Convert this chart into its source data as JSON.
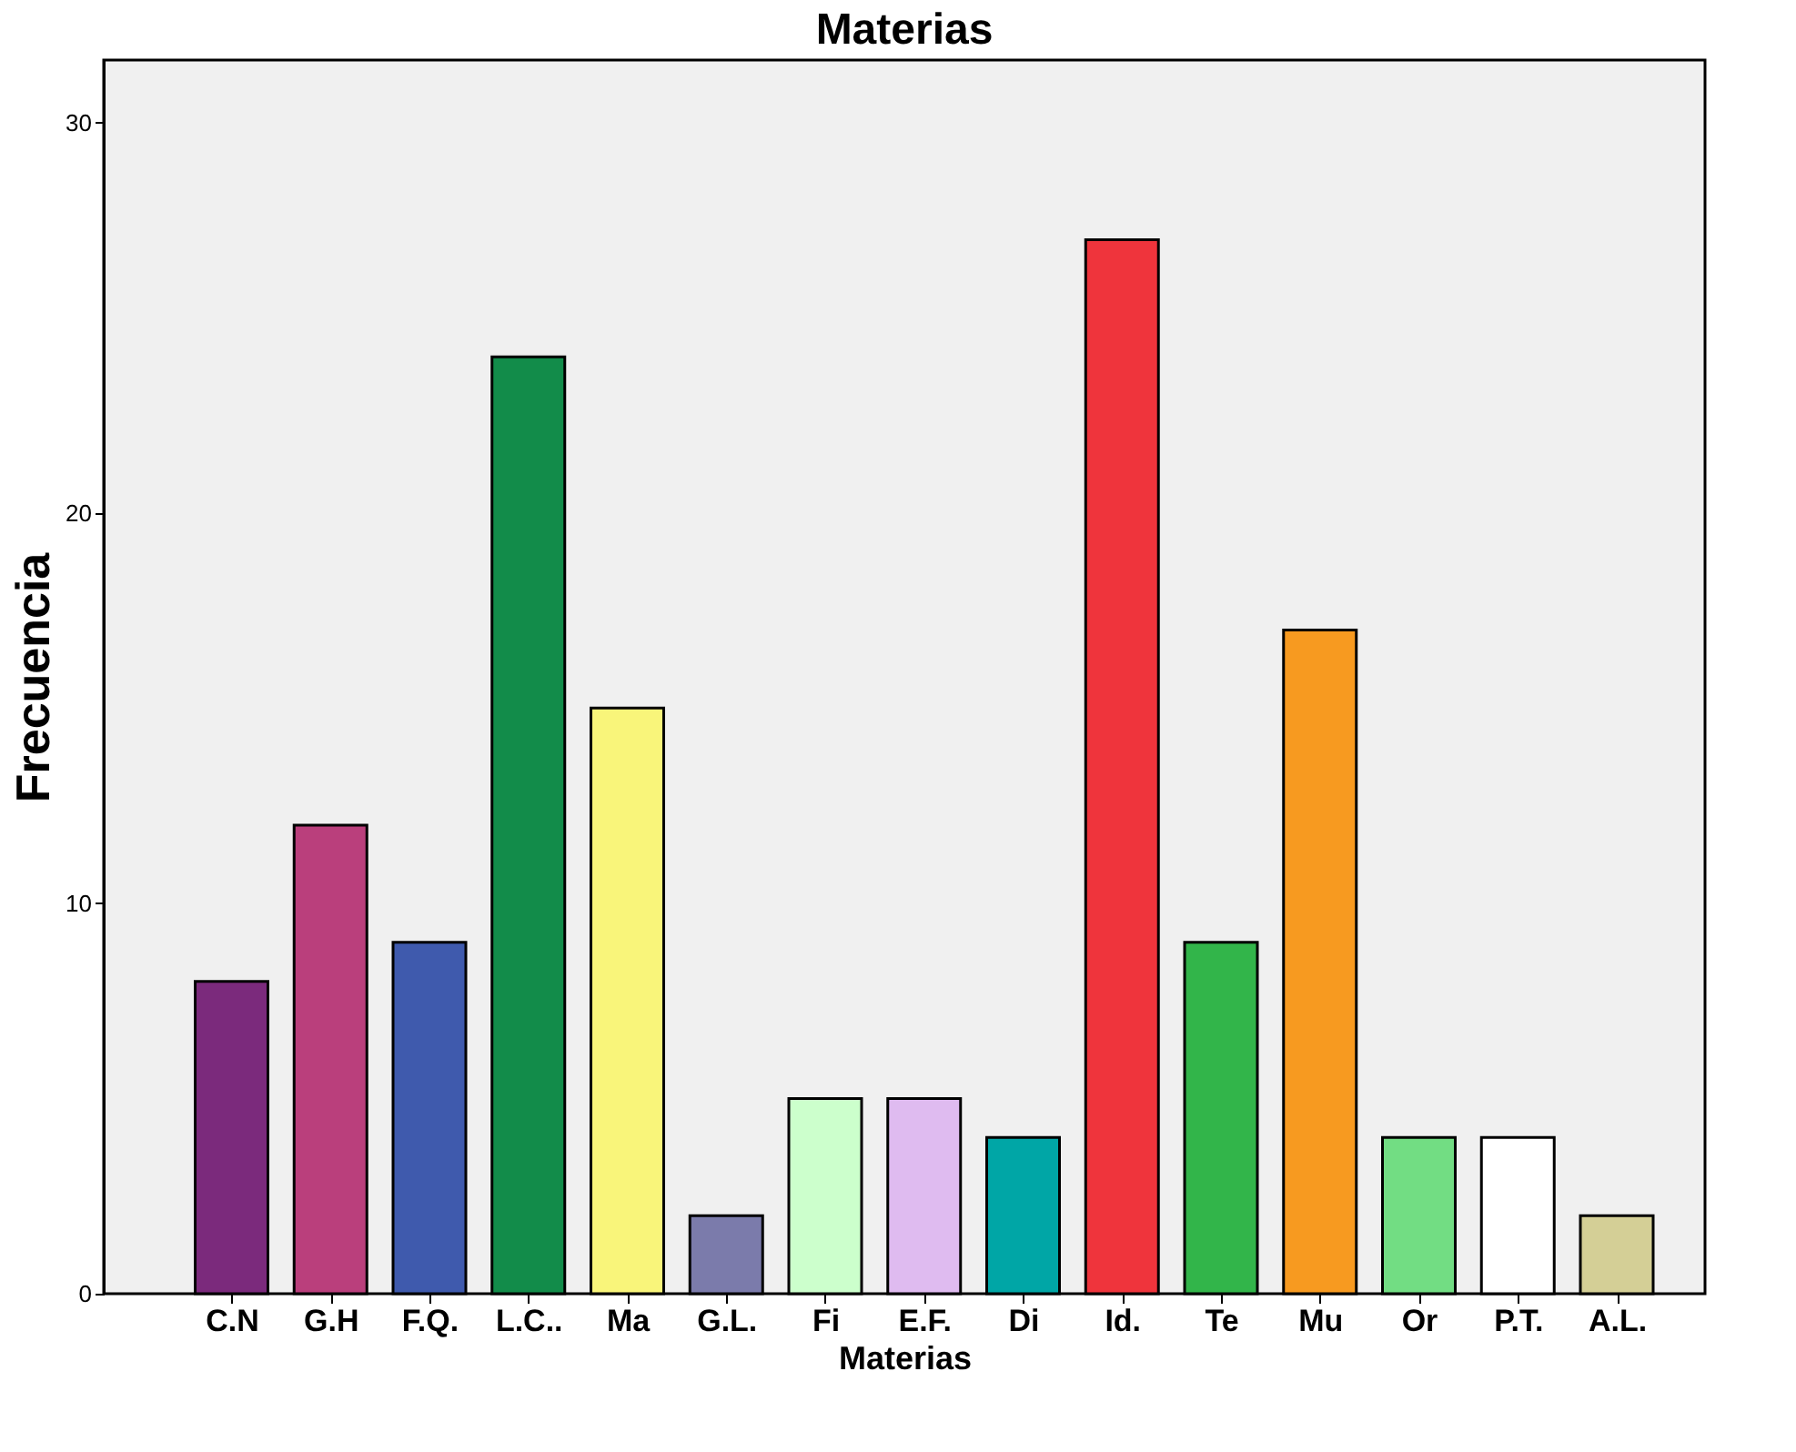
{
  "chart_data": {
    "type": "bar",
    "title": "Materias",
    "xlabel": "Materias",
    "ylabel": "Frecuencia",
    "categories": [
      "C.N",
      "G.H",
      "F.Q.",
      "L.C..",
      "Ma",
      "G.L.",
      "Fi",
      "E.F.",
      "Di",
      "Id.",
      "Te",
      "Mu",
      "Or",
      "P.T.",
      "A.L."
    ],
    "values": [
      8,
      12,
      9,
      24,
      15,
      2,
      5,
      5,
      4,
      27,
      9,
      17,
      4,
      4,
      2
    ],
    "colors": [
      "#7b2a7c",
      "#ba3f7c",
      "#3f5aad",
      "#128c4a",
      "#f9f57a",
      "#7b7bab",
      "#ccffcc",
      "#dfbbf0",
      "#00a6a6",
      "#ef343c",
      "#32b54a",
      "#f79a20",
      "#72dd83",
      "#ffffff",
      "#d4cf96"
    ],
    "ylim": [
      0,
      31.6
    ],
    "yticks": [
      0,
      10,
      20,
      30
    ],
    "grid": false
  }
}
